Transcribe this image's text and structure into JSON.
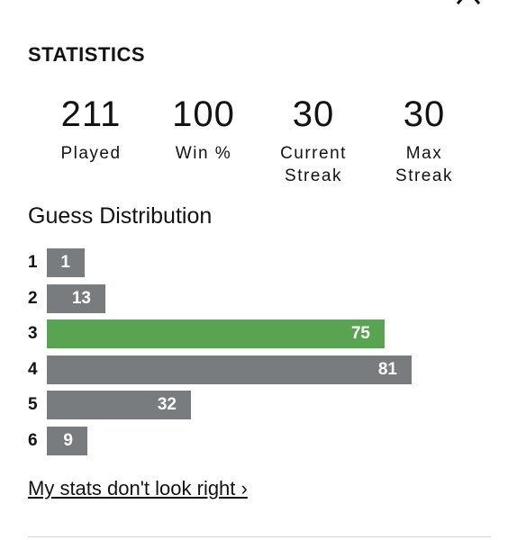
{
  "header": {
    "title": "STATISTICS"
  },
  "stats": [
    {
      "value": 211,
      "label": "Played"
    },
    {
      "value": 100,
      "label": "Win %"
    },
    {
      "value": 30,
      "label": "Current Streak"
    },
    {
      "value": 30,
      "label": "Max Streak"
    }
  ],
  "guess_distribution": {
    "type": "bar",
    "title": "Guess Distribution",
    "categories": [
      "1",
      "2",
      "3",
      "4",
      "5",
      "6"
    ],
    "values": [
      1,
      13,
      75,
      81,
      32,
      9
    ],
    "color": "#787c7e",
    "highlight": 2,
    "highlight_color": "#59a352"
  },
  "link": "My stats don't look right ›"
}
